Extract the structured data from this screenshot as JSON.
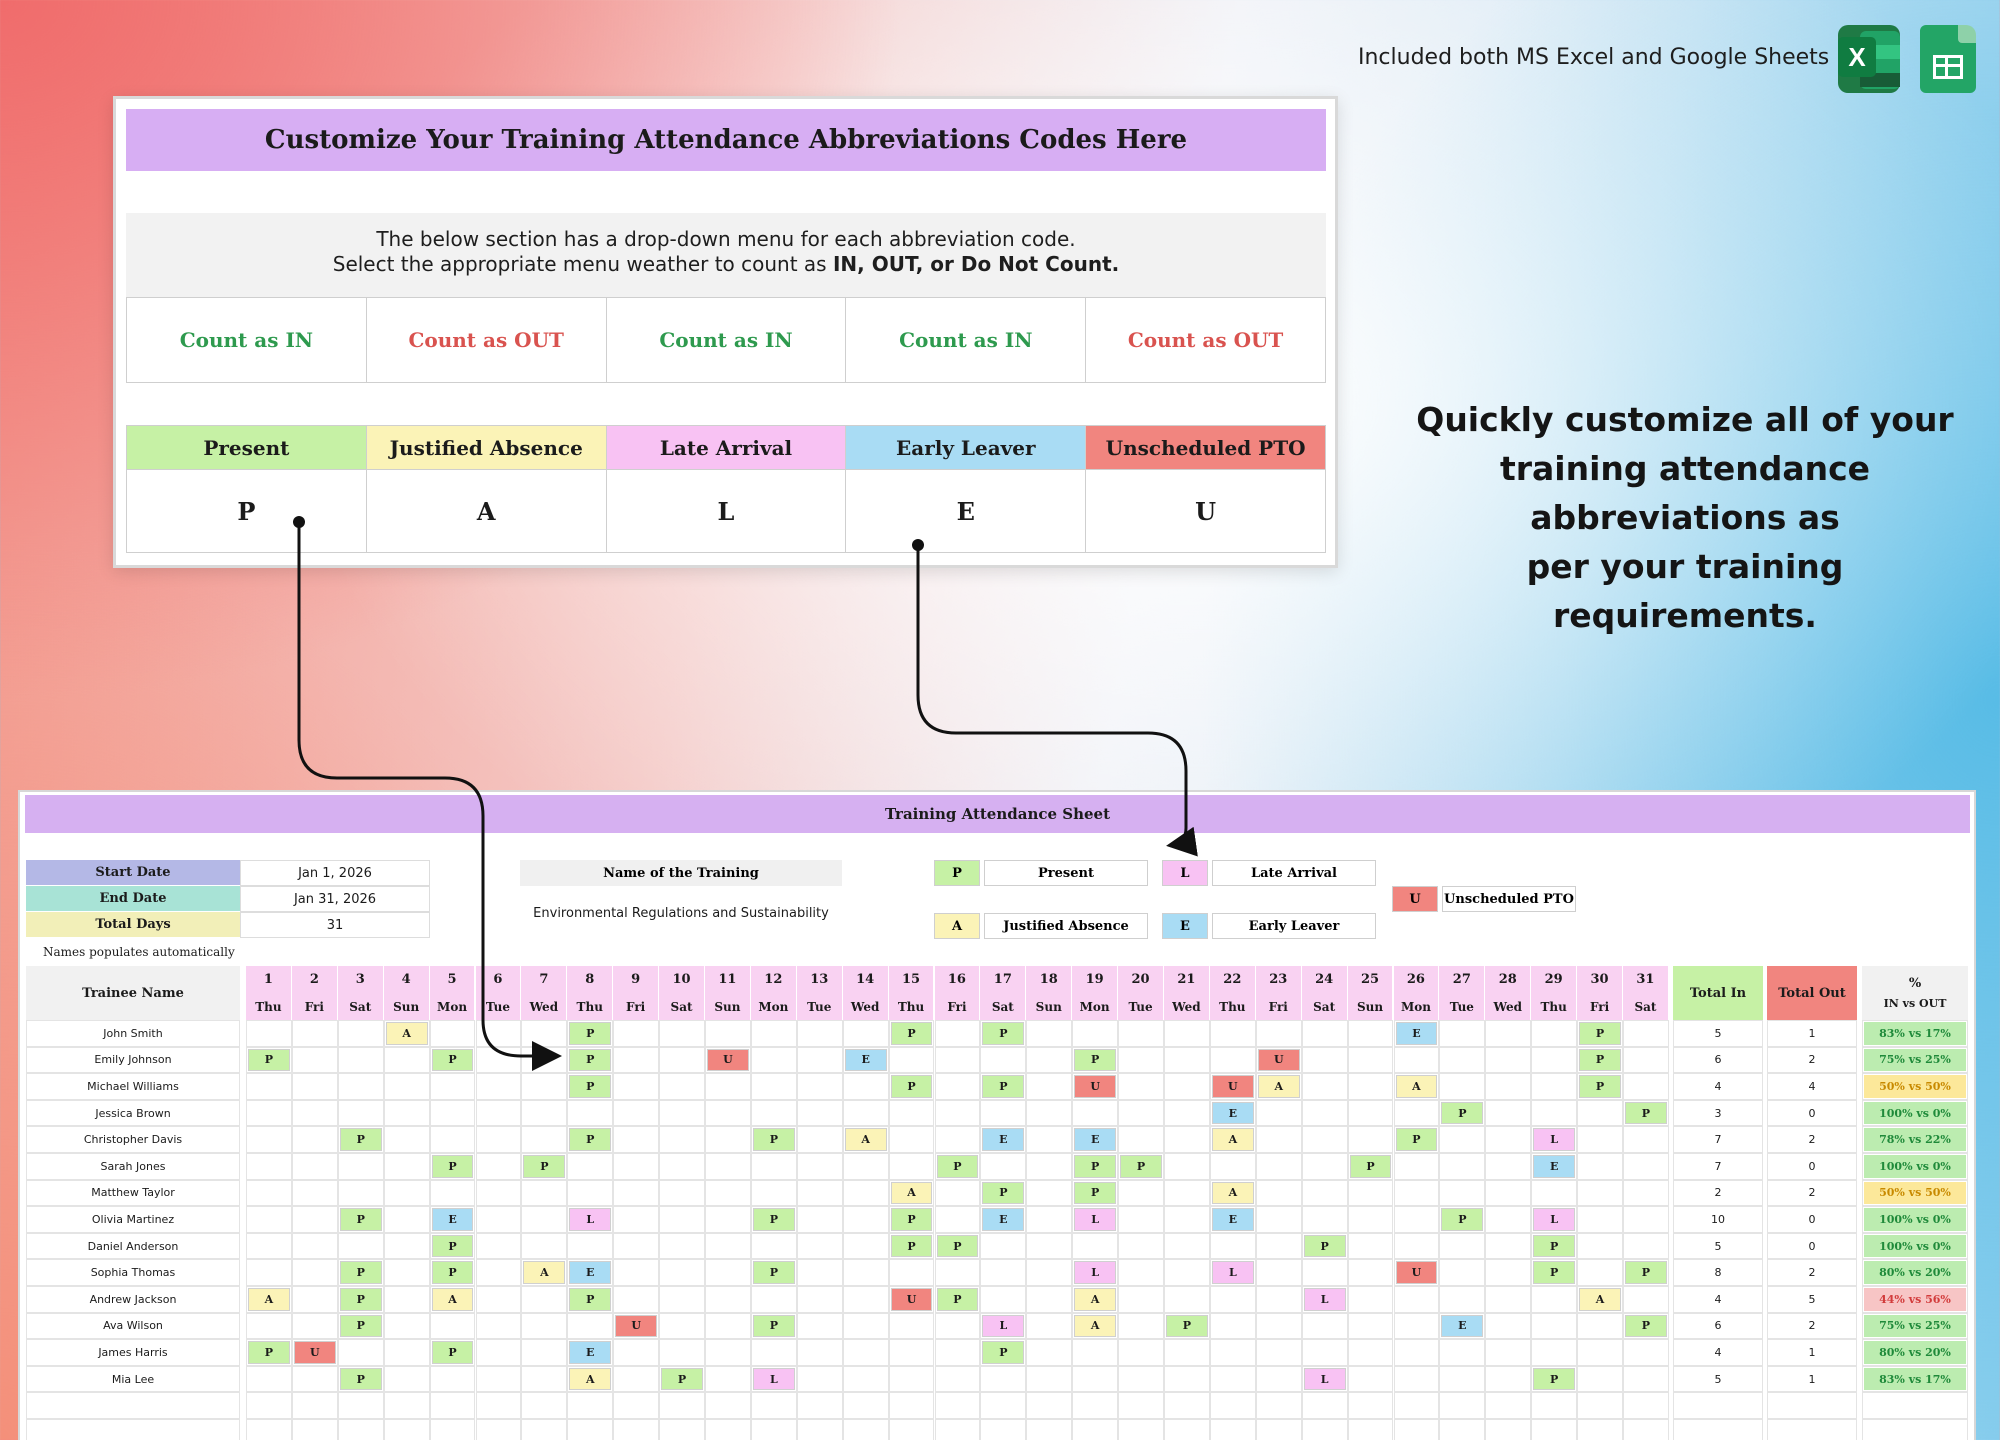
{
  "banner": {
    "included_text": "Included both MS Excel and Google Sheets",
    "excel_icon": "excel-icon",
    "sheets_icon": "google-sheets-icon",
    "excel_letter": "X"
  },
  "customize": {
    "header": "Customize Your Training Attendance Abbreviations Codes Here",
    "info_line1": "The below section has a drop-down menu for each abbreviation code.",
    "info_line2_prefix": "Select the appropriate menu weather to count as ",
    "info_line2_bold": "IN, OUT, or Do Not Count.",
    "count_options": [
      {
        "label": "Count as IN",
        "color": "#2e9a4e"
      },
      {
        "label": "Count as OUT",
        "color": "#d9534f"
      },
      {
        "label": "Count as IN",
        "color": "#2e9a4e"
      },
      {
        "label": "Count as IN",
        "color": "#2e9a4e"
      },
      {
        "label": "Count as OUT",
        "color": "#d9534f"
      }
    ],
    "codes": [
      {
        "name": "Present",
        "code": "P",
        "color": "#c6f1a5"
      },
      {
        "name": "Justified Absence",
        "code": "A",
        "color": "#fbf3b7"
      },
      {
        "name": "Late Arrival",
        "code": "L",
        "color": "#f8c2f3"
      },
      {
        "name": "Early Leaver",
        "code": "E",
        "color": "#a9dcf4"
      },
      {
        "name": "Unscheduled PTO",
        "code": "U",
        "color": "#f1857f"
      }
    ]
  },
  "promo": {
    "line1": "Quickly customize all of your",
    "line2": "training attendance abbreviations as",
    "line3": "per your training requirements."
  },
  "sheet": {
    "title": "Training Attendance Sheet",
    "start_date_label": "Start Date",
    "start_date": "Jan 1, 2026",
    "end_date_label": "End Date",
    "end_date": "Jan 31, 2026",
    "total_days_label": "Total Days",
    "total_days": "31",
    "training_name_label": "Name of the Training",
    "training_name": "Environmental Regulations and Sustainability",
    "names_note": "Names populates automatically",
    "legend": [
      {
        "code": "P",
        "label": "Present"
      },
      {
        "code": "A",
        "label": "Justified Absence"
      },
      {
        "code": "L",
        "label": "Late Arrival"
      },
      {
        "code": "E",
        "label": "Early Leaver"
      },
      {
        "code": "U",
        "label": "Unscheduled PTO"
      }
    ],
    "col_trainee": "Trainee Name",
    "col_total_in": "Total In",
    "col_total_out": "Total Out",
    "col_pct": "%",
    "col_pct_sub": "IN vs OUT",
    "days": [
      "1",
      "2",
      "3",
      "4",
      "5",
      "6",
      "7",
      "8",
      "9",
      "10",
      "11",
      "12",
      "13",
      "14",
      "15",
      "16",
      "17",
      "18",
      "19",
      "20",
      "21",
      "22",
      "23",
      "24",
      "25",
      "26",
      "27",
      "28",
      "29",
      "30",
      "31"
    ],
    "weekdays": [
      "Thu",
      "Fri",
      "Sat",
      "Sun",
      "Mon",
      "Tue",
      "Wed",
      "Thu",
      "Fri",
      "Sat",
      "Sun",
      "Mon",
      "Tue",
      "Wed",
      "Thu",
      "Fri",
      "Sat",
      "Sun",
      "Mon",
      "Tue",
      "Wed",
      "Thu",
      "Fri",
      "Sat",
      "Sun",
      "Mon",
      "Tue",
      "Wed",
      "Thu",
      "Fri",
      "Sat"
    ],
    "colors": {
      "P": "#c6f1a5",
      "A": "#fbf3b7",
      "L": "#f8c2f3",
      "E": "#a9dcf4",
      "U": "#f1857f"
    },
    "trainees": [
      {
        "name": "John Smith",
        "marks": {
          "4": "A",
          "8": "P",
          "15": "P",
          "17": "P",
          "26": "E",
          "30": "P"
        },
        "total_in": "5",
        "total_out": "1",
        "pct": "83% vs 17%",
        "pct_level": "good"
      },
      {
        "name": "Emily Johnson",
        "marks": {
          "1": "P",
          "5": "P",
          "8": "P",
          "11": "U",
          "14": "E",
          "19": "P",
          "23": "U",
          "30": "P"
        },
        "total_in": "6",
        "total_out": "2",
        "pct": "75% vs 25%",
        "pct_level": "good"
      },
      {
        "name": "Michael Williams",
        "marks": {
          "8": "P",
          "15": "P",
          "17": "P",
          "19": "U",
          "22": "U",
          "23": "A",
          "26": "A",
          "30": "P"
        },
        "total_in": "4",
        "total_out": "4",
        "pct": "50% vs 50%",
        "pct_level": "mid"
      },
      {
        "name": "Jessica Brown",
        "marks": {
          "22": "E",
          "27": "P",
          "31": "P"
        },
        "total_in": "3",
        "total_out": "0",
        "pct": "100% vs 0%",
        "pct_level": "good"
      },
      {
        "name": "Christopher Davis",
        "marks": {
          "3": "P",
          "8": "P",
          "12": "P",
          "14": "A",
          "17": "E",
          "19": "E",
          "22": "A",
          "26": "P",
          "29": "L"
        },
        "total_in": "7",
        "total_out": "2",
        "pct": "78% vs 22%",
        "pct_level": "good"
      },
      {
        "name": "Sarah Jones",
        "marks": {
          "5": "P",
          "7": "P",
          "16": "P",
          "19": "P",
          "20": "P",
          "25": "P",
          "29": "E"
        },
        "total_in": "7",
        "total_out": "0",
        "pct": "100% vs 0%",
        "pct_level": "good"
      },
      {
        "name": "Matthew Taylor",
        "marks": {
          "15": "A",
          "17": "P",
          "19": "P",
          "22": "A"
        },
        "total_in": "2",
        "total_out": "2",
        "pct": "50% vs 50%",
        "pct_level": "mid"
      },
      {
        "name": "Olivia Martinez",
        "marks": {
          "3": "P",
          "5": "E",
          "8": "L",
          "12": "P",
          "15": "P",
          "17": "E",
          "19": "L",
          "22": "E",
          "27": "P",
          "29": "L"
        },
        "total_in": "10",
        "total_out": "0",
        "pct": "100% vs 0%",
        "pct_level": "good"
      },
      {
        "name": "Daniel Anderson",
        "marks": {
          "5": "P",
          "15": "P",
          "16": "P",
          "24": "P",
          "29": "P"
        },
        "total_in": "5",
        "total_out": "0",
        "pct": "100% vs 0%",
        "pct_level": "good"
      },
      {
        "name": "Sophia Thomas",
        "marks": {
          "3": "P",
          "5": "P",
          "7": "A",
          "8": "E",
          "12": "P",
          "19": "L",
          "22": "L",
          "26": "U",
          "29": "P",
          "31": "P"
        },
        "total_in": "8",
        "total_out": "2",
        "pct": "80% vs 20%",
        "pct_level": "good"
      },
      {
        "name": "Andrew Jackson",
        "marks": {
          "1": "A",
          "3": "P",
          "5": "A",
          "8": "P",
          "15": "U",
          "16": "P",
          "19": "A",
          "24": "L",
          "30": "A"
        },
        "total_in": "4",
        "total_out": "5",
        "pct": "44% vs 56%",
        "pct_level": "bad"
      },
      {
        "name": "Ava Wilson",
        "marks": {
          "3": "P",
          "9": "U",
          "12": "P",
          "17": "L",
          "19": "A",
          "21": "P",
          "27": "E",
          "31": "P"
        },
        "total_in": "6",
        "total_out": "2",
        "pct": "75% vs 25%",
        "pct_level": "good"
      },
      {
        "name": "James Harris",
        "marks": {
          "1": "P",
          "2": "U",
          "5": "P",
          "8": "E",
          "17": "P"
        },
        "total_in": "4",
        "total_out": "1",
        "pct": "80% vs 20%",
        "pct_level": "good"
      },
      {
        "name": "Mia Lee",
        "marks": {
          "3": "P",
          "8": "A",
          "10": "P",
          "12": "L",
          "24": "L",
          "29": "P"
        },
        "total_in": "5",
        "total_out": "1",
        "pct": "83% vs 17%",
        "pct_level": "good"
      }
    ],
    "pct_colors": {
      "good": {
        "bg": "#bcecb0",
        "fg": "#1f8a3a"
      },
      "mid": {
        "bg": "#fce89a",
        "fg": "#c88a00"
      },
      "bad": {
        "bg": "#f7c5c5",
        "fg": "#d23b3b"
      }
    }
  }
}
